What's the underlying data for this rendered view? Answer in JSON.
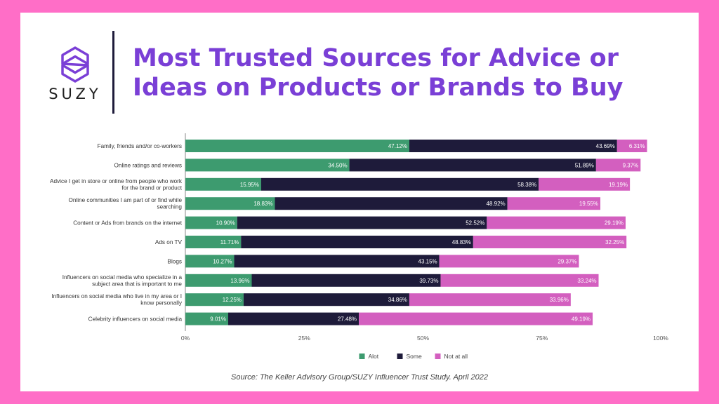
{
  "brand": {
    "name": "SUZY"
  },
  "title": "Most Trusted Sources for Advice or Ideas on Products or Brands to Buy",
  "source": "Source: The Keller Advisory Group/SUZY Influencer Trust Study. April 2022",
  "colors": {
    "alot": "#3d9b6f",
    "some": "#1e1b3a",
    "not_at_all": "#d35fbf",
    "title": "#7a3fd6",
    "frame": "#ff6ec7"
  },
  "chart_data": {
    "type": "bar",
    "orientation": "horizontal",
    "stacked": true,
    "categories": [
      [
        "Family, friends and/or co-workers"
      ],
      [
        "Online ratings and reviews"
      ],
      [
        "Advice I get in store or online from people who work",
        "for the brand or product"
      ],
      [
        "Online communities I am part of or find while",
        "searching"
      ],
      [
        "Content or Ads from brands on the internet"
      ],
      [
        "Ads on TV"
      ],
      [
        "Blogs"
      ],
      [
        "Influencers on social media who specialize in a",
        "subject area that is important to me"
      ],
      [
        "Influencers on social media who live in my area or I",
        "know personally"
      ],
      [
        "Celebrity influencers on social media"
      ]
    ],
    "series": [
      {
        "name": "Alot",
        "values": [
          47.12,
          34.5,
          15.95,
          18.83,
          10.9,
          11.71,
          10.27,
          13.96,
          12.25,
          9.01
        ],
        "labels": [
          "47.12%",
          "34.50%",
          "15.95%",
          "18.83%",
          "10.90%",
          "11.71%",
          "10.27%",
          "13.96%",
          "12.25%",
          "9.01%"
        ]
      },
      {
        "name": "Some",
        "values": [
          43.69,
          51.89,
          58.38,
          48.92,
          52.52,
          48.83,
          43.15,
          39.73,
          34.86,
          27.48
        ],
        "labels": [
          "43.69%",
          "51.89%",
          "58.38%",
          "48.92%",
          "52.52%",
          "48.83%",
          "43.15%",
          "39.73%",
          "34.86%",
          "27.48%"
        ]
      },
      {
        "name": "Not at all",
        "values": [
          6.31,
          9.37,
          19.19,
          19.55,
          29.19,
          32.25,
          29.37,
          33.24,
          33.96,
          49.19
        ],
        "labels": [
          "6.31%",
          "9.37%",
          "19.19%",
          "19.55%",
          "29.19%",
          "32.25%",
          "29.37%",
          "33.24%",
          "33.96%",
          "49.19%"
        ]
      }
    ],
    "xlim": [
      0,
      100
    ],
    "xticks": [
      0,
      25,
      50,
      75,
      100
    ],
    "xtick_labels": [
      "0%",
      "25%",
      "50%",
      "75%",
      "100%"
    ],
    "grid": false,
    "legend_position": "bottom-center"
  }
}
